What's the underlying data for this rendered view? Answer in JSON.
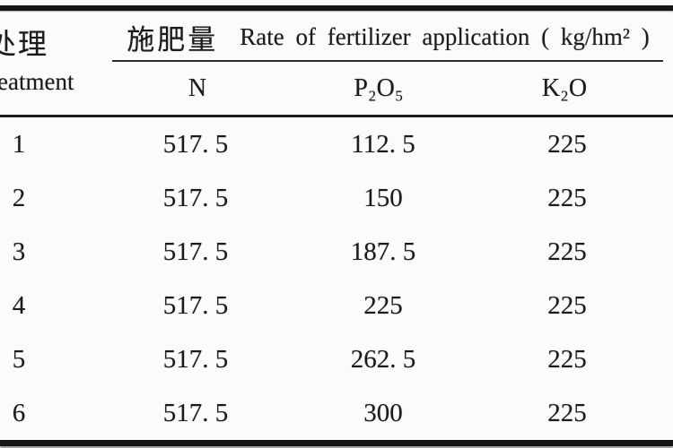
{
  "scan": {
    "background_color": "#fcfbfa",
    "ink_color": "#1b1b1b"
  },
  "table": {
    "treatment_header_chinese": "处理",
    "treatment_header_english_visible": "eatment",
    "span_header_chinese": "施肥量",
    "span_header_english": "Rate of fertilizer application ( kg/hm² )",
    "columns": [
      "N",
      "P₂O₅",
      "K₂O"
    ],
    "rows": [
      {
        "treatment": "1",
        "n": "517. 5",
        "p2o5": "112. 5",
        "k2o": "225"
      },
      {
        "treatment": "2",
        "n": "517. 5",
        "p2o5": "150",
        "k2o": "225"
      },
      {
        "treatment": "3",
        "n": "517. 5",
        "p2o5": "187. 5",
        "k2o": "225"
      },
      {
        "treatment": "4",
        "n": "517. 5",
        "p2o5": "225",
        "k2o": "225"
      },
      {
        "treatment": "5",
        "n": "517. 5",
        "p2o5": "262. 5",
        "k2o": "225"
      },
      {
        "treatment": "6",
        "n": "517. 5",
        "p2o5": "300",
        "k2o": "225"
      }
    ]
  }
}
